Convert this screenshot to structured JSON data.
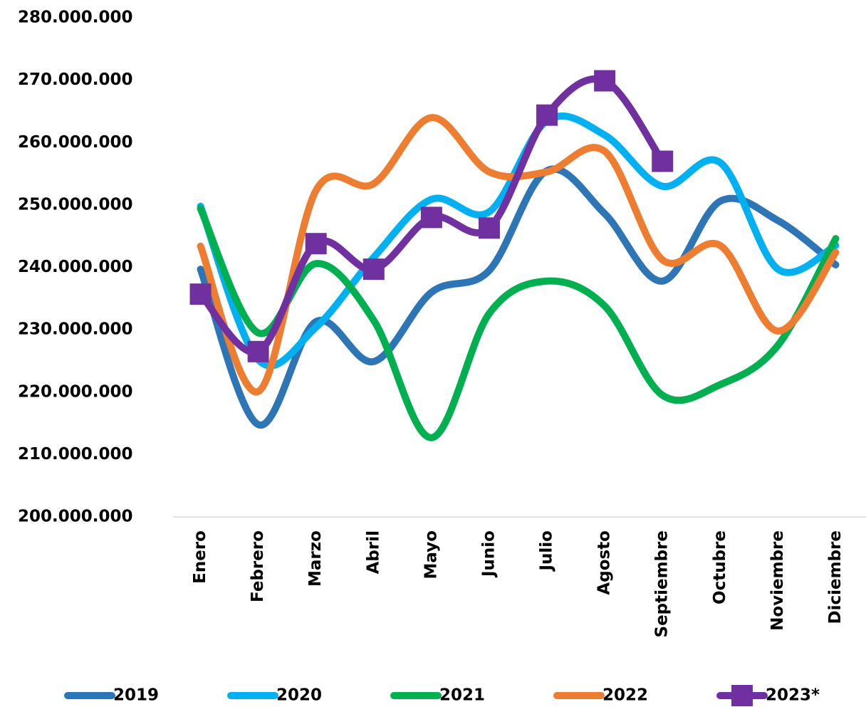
{
  "chart_data": {
    "type": "line",
    "categories": [
      "Enero",
      "Febrero",
      "Marzo",
      "Abril",
      "Mayo",
      "Junio",
      "Julio",
      "Agosto",
      "Septiembre",
      "Octubre",
      "Noviembre",
      "Diciembre"
    ],
    "series": [
      {
        "name": "2019",
        "color": "#2e75b6",
        "values": [
          239700000,
          214800000,
          231300000,
          224900000,
          236000000,
          239500000,
          255500000,
          248600000,
          237800000,
          250600000,
          247500000,
          240400000
        ]
      },
      {
        "name": "2020",
        "color": "#00b0f0",
        "values": [
          249800000,
          225200000,
          230400000,
          241600000,
          250900000,
          248900000,
          263500000,
          261200000,
          253000000,
          256800000,
          239700000,
          243500000
        ]
      },
      {
        "name": "2021",
        "color": "#00b050",
        "values": [
          249400000,
          229500000,
          240600000,
          231500000,
          212700000,
          232600000,
          237800000,
          233800000,
          219500000,
          221200000,
          227500000,
          244600000
        ]
      },
      {
        "name": "2022",
        "color": "#ed7d31",
        "values": [
          243400000,
          220100000,
          252300000,
          253400000,
          264000000,
          255300000,
          255300000,
          258600000,
          241200000,
          243500000,
          229800000,
          242400000
        ]
      },
      {
        "name": "2023*",
        "color": "#7030a0",
        "marker": "square",
        "values": [
          235700000,
          226500000,
          243800000,
          239700000,
          248000000,
          246300000,
          264400000,
          269900000,
          257000000,
          null,
          null,
          null
        ]
      }
    ],
    "ylim": [
      200000000,
      280000000
    ],
    "yticks": [
      {
        "value": 200000000,
        "label": "200.000.000"
      },
      {
        "value": 210000000,
        "label": "210.000.000"
      },
      {
        "value": 220000000,
        "label": "220.000.000"
      },
      {
        "value": 230000000,
        "label": "230.000.000"
      },
      {
        "value": 240000000,
        "label": "240.000.000"
      },
      {
        "value": 250000000,
        "label": "250.000.000"
      },
      {
        "value": 260000000,
        "label": "260.000.000"
      },
      {
        "value": 270000000,
        "label": "270.000.000"
      },
      {
        "value": 280000000,
        "label": "280.000.000"
      }
    ],
    "grid": false,
    "legend": "bottom"
  }
}
